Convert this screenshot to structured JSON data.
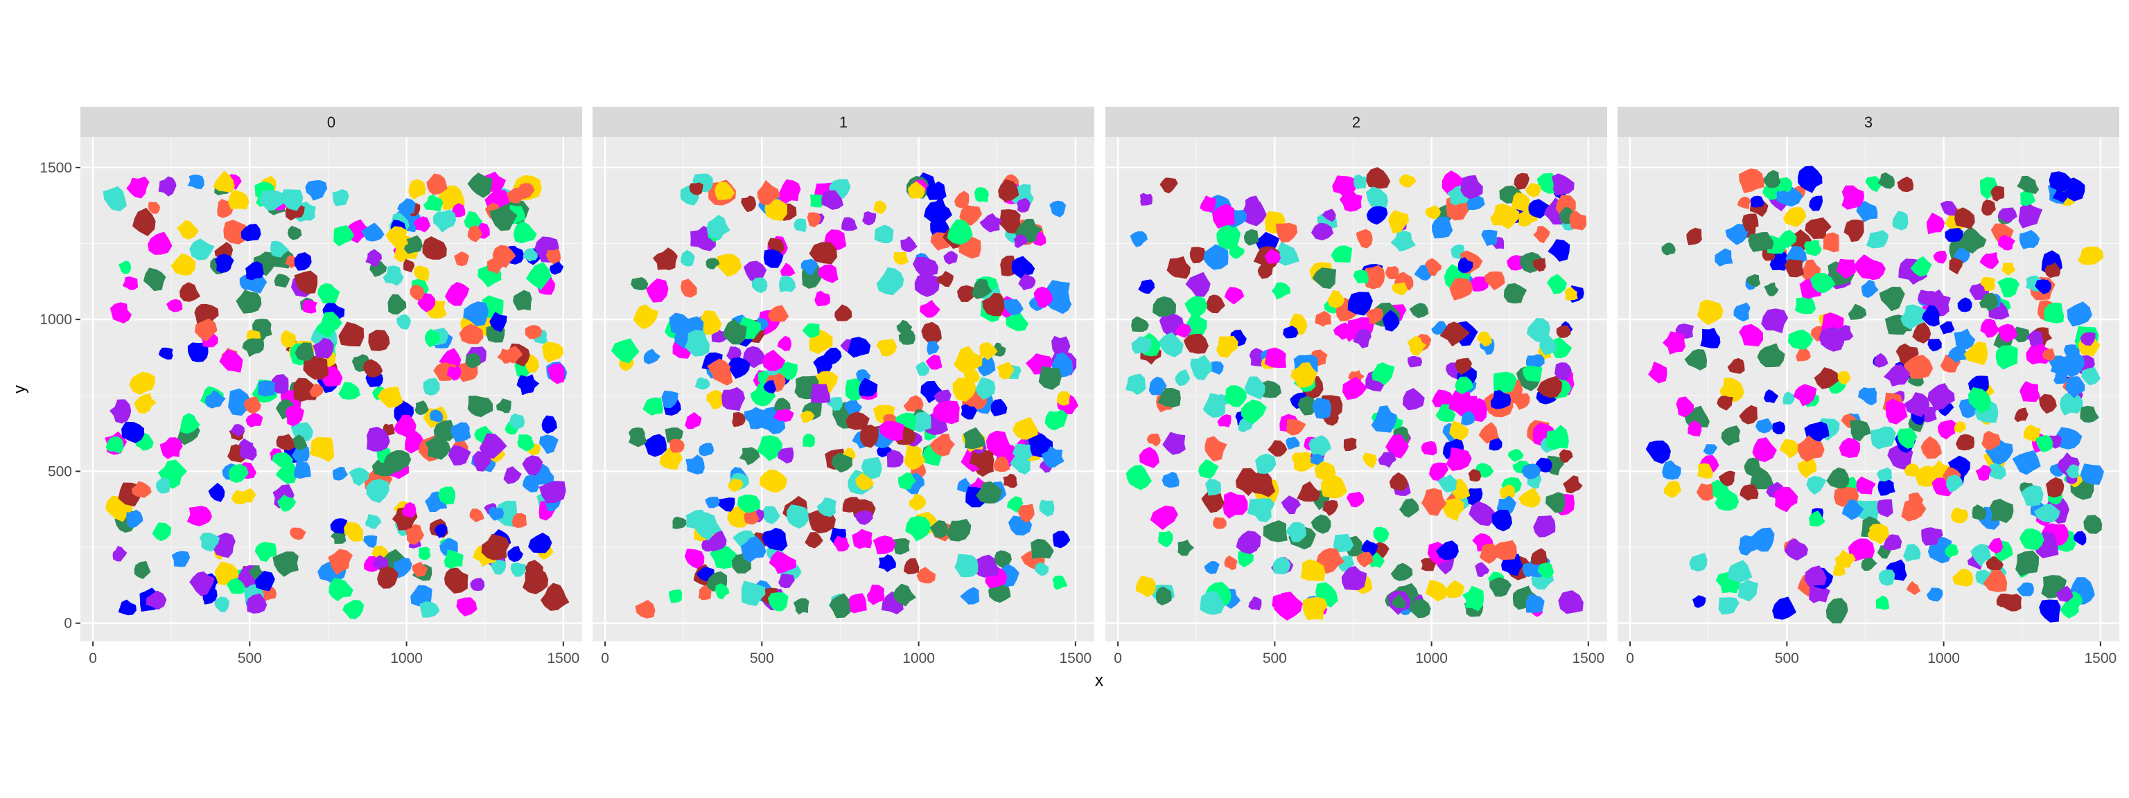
{
  "chart_data": {
    "type": "scatter",
    "mark": "filled cell polygons (segmentation masks), faceted",
    "xlabel": "x",
    "ylabel": "y",
    "xlim": [
      -40,
      1560
    ],
    "ylim": [
      -60,
      1600
    ],
    "x_ticks": [
      0,
      500,
      1000,
      1500
    ],
    "y_ticks": [
      0,
      500,
      1000,
      1500
    ],
    "grid": true,
    "legend": "none",
    "facets": [
      "0",
      "1",
      "2",
      "3"
    ],
    "palette": [
      "#FF00FF",
      "#FFD700",
      "#0000FF",
      "#1E90FF",
      "#A52A2A",
      "#2E8B57",
      "#00FF7F",
      "#FF6347",
      "#40E0D0",
      "#A020F0"
    ],
    "panel_background": "#EBEBEB",
    "strip_background": "#D9D9D9",
    "cells_per_panel": 360,
    "cell_size_range": [
      22,
      44
    ]
  }
}
